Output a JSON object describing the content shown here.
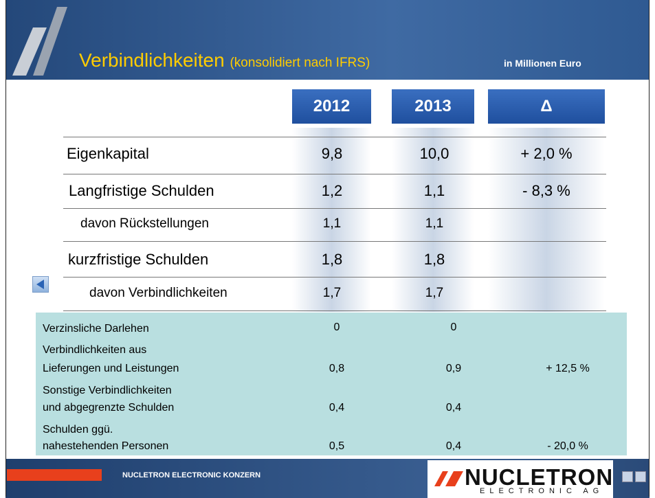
{
  "header": {
    "title": "Verbindlichkeiten",
    "subtitle": "(konsolidiert nach IFRS)",
    "unit": "in Millionen Euro"
  },
  "table": {
    "columns": [
      "2012",
      "2013",
      "Δ"
    ],
    "rows": [
      [
        "Eigenkapital",
        "9,8",
        "10,0",
        "+ 2,0 %"
      ],
      [
        "Langfristige Schulden",
        "1,2",
        "1,1",
        "- 8,3 %"
      ],
      [
        "davon Rückstellungen",
        "1,1",
        "1,1"
      ],
      [
        "kurzfristige Schulden",
        "1,8",
        "1,8"
      ],
      [
        "davon Verbindlichkeiten",
        "1,7",
        "1,7"
      ]
    ]
  },
  "details": {
    "rows": [
      {
        "label": [
          "Verzinsliche Darlehen"
        ],
        "values": [
          "0",
          "0"
        ]
      },
      {
        "label": [
          "Verbindlichkeiten aus",
          "Lieferungen und Leistungen"
        ],
        "values": [
          "0,8",
          "0,9",
          "+ 12,5 %"
        ]
      },
      {
        "label": [
          "Sonstige Verbindlichkeiten",
          "und abgegrenzte Schulden"
        ],
        "values": [
          "0,4",
          "0,4"
        ]
      },
      {
        "label": [
          "Schulden ggü.",
          "nahestehenden Personen"
        ],
        "values": [
          "0,5",
          "0,4",
          "- 20,0 %"
        ]
      }
    ]
  },
  "footer": {
    "company": "NUCLETRON ELECTRONIC KONZERN",
    "logo": "NUCLETRON",
    "logo_sub": "ELECTRONIC AG"
  }
}
